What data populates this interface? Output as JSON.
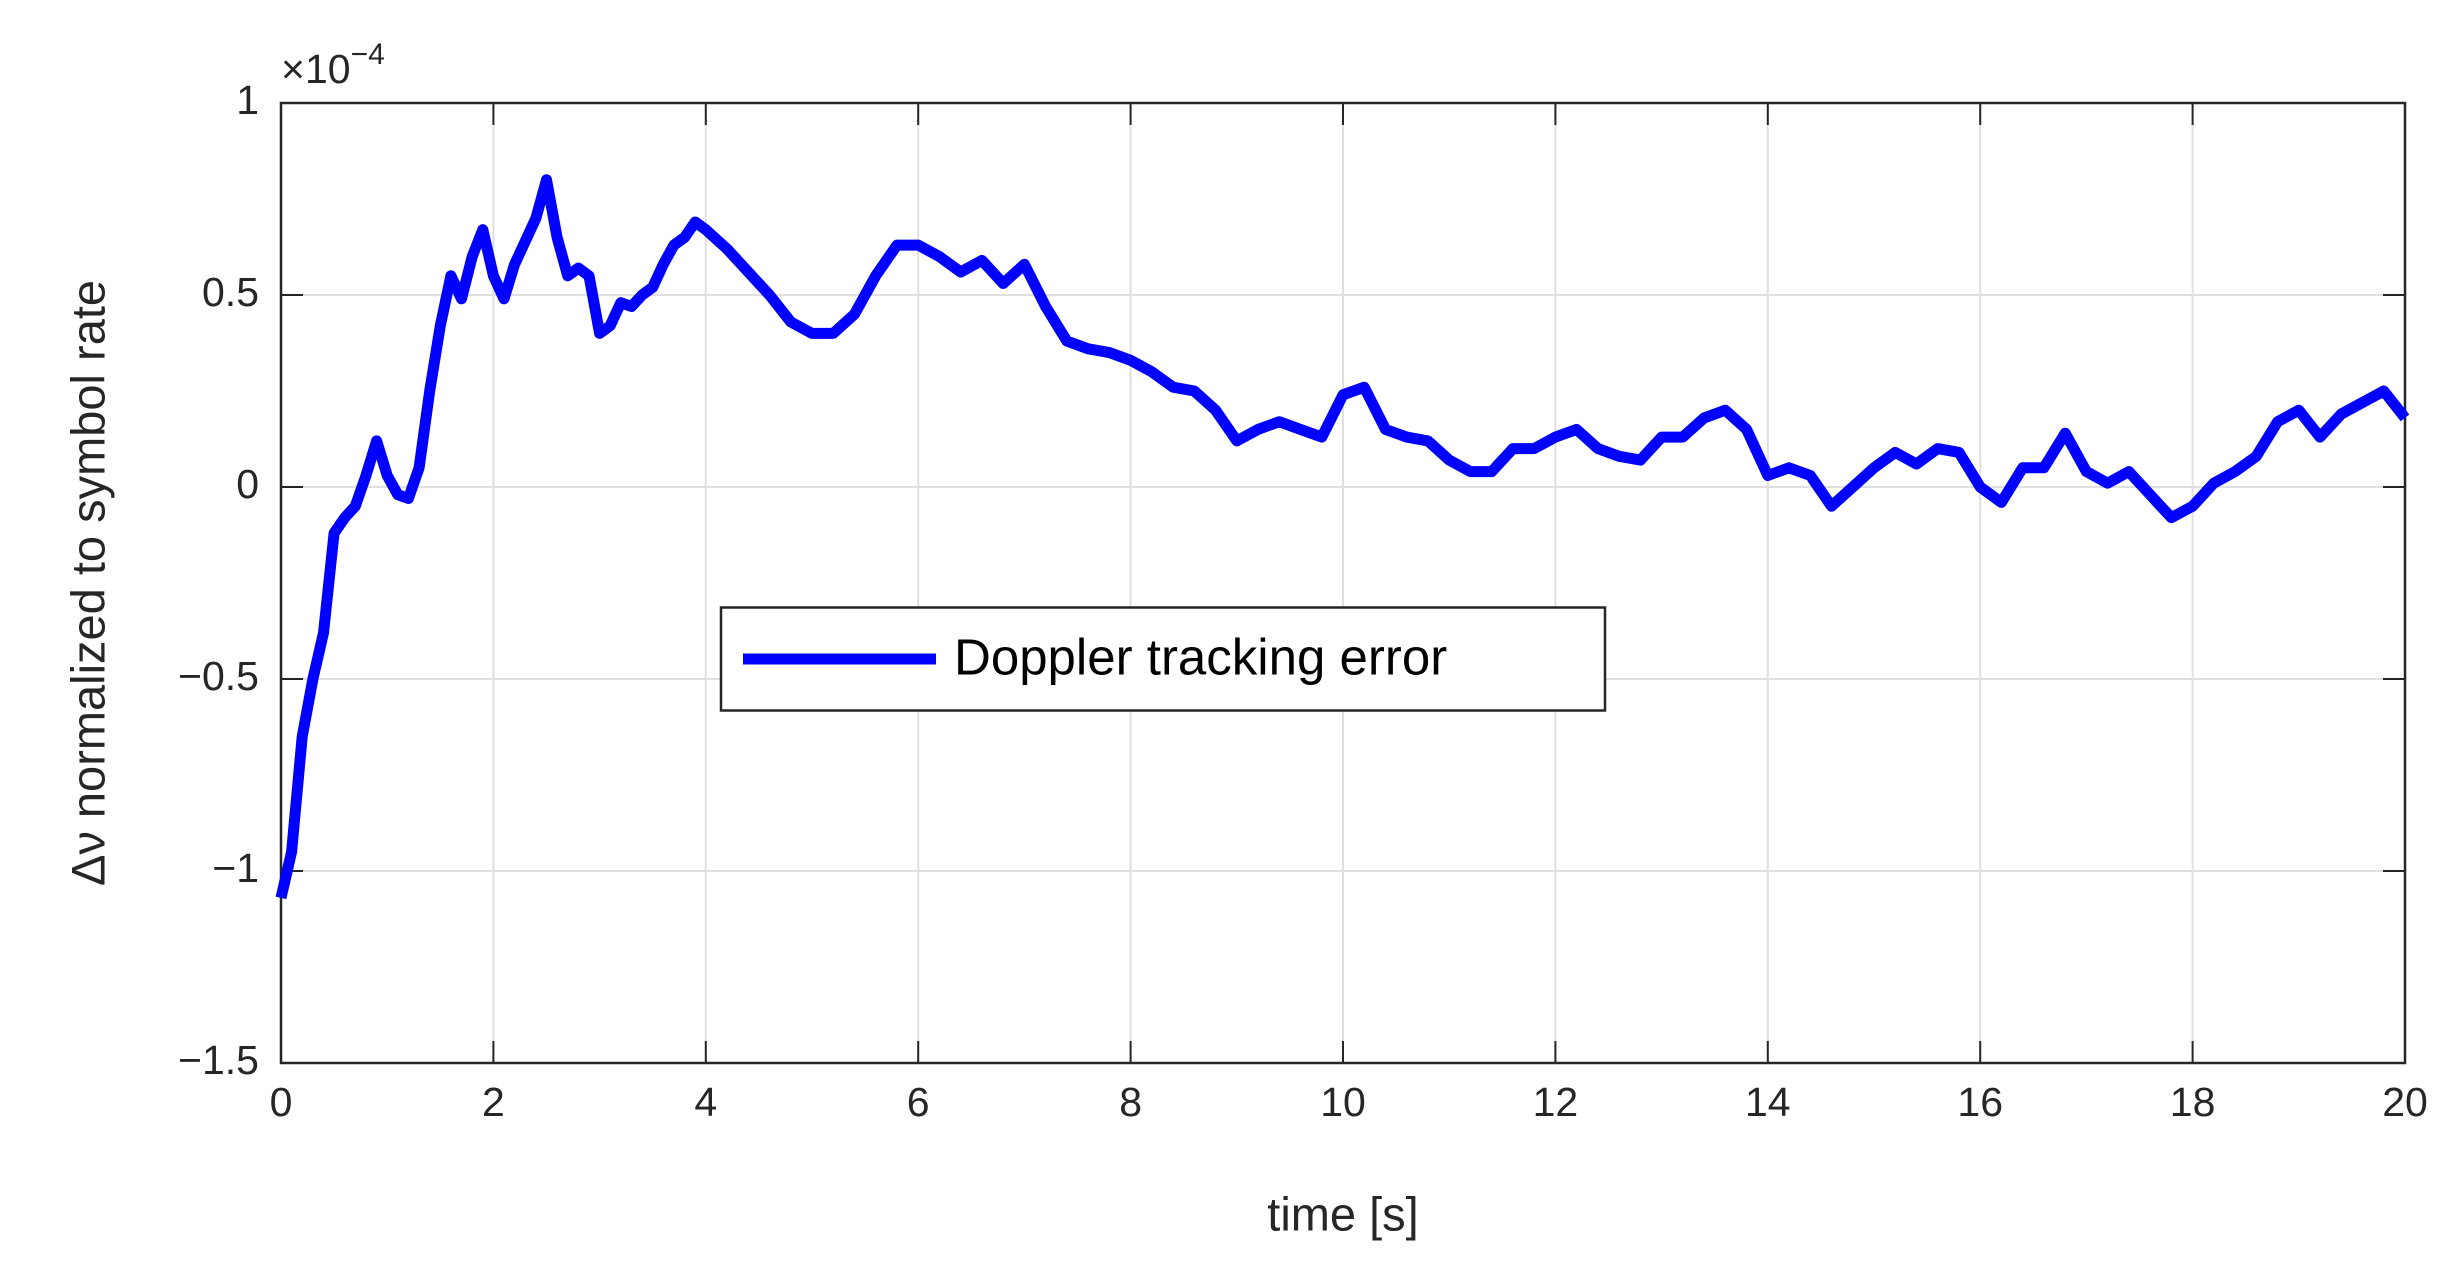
{
  "chart_data": {
    "type": "line",
    "x_label": "time [s]",
    "y_label": "Δν normalized to symbol rate",
    "y_multiplier": {
      "base": "×10",
      "exponent": "−4"
    },
    "x": [
      0,
      0.1,
      0.2,
      0.3,
      0.4,
      0.5,
      0.6,
      0.7,
      0.8,
      0.9,
      1.0,
      1.1,
      1.2,
      1.3,
      1.4,
      1.5,
      1.6,
      1.7,
      1.8,
      1.9,
      2.0,
      2.1,
      2.2,
      2.3,
      2.4,
      2.5,
      2.6,
      2.7,
      2.8,
      2.9,
      3.0,
      3.1,
      3.2,
      3.3,
      3.4,
      3.5,
      3.6,
      3.7,
      3.8,
      3.9,
      4.0,
      4.2,
      4.4,
      4.6,
      4.8,
      5.0,
      5.2,
      5.4,
      5.6,
      5.8,
      6.0,
      6.2,
      6.4,
      6.6,
      6.8,
      7.0,
      7.2,
      7.4,
      7.6,
      7.8,
      8.0,
      8.2,
      8.4,
      8.6,
      8.8,
      9.0,
      9.2,
      9.4,
      9.6,
      9.8,
      10.0,
      10.2,
      10.4,
      10.6,
      10.8,
      11.0,
      11.2,
      11.4,
      11.6,
      11.8,
      12.0,
      12.2,
      12.4,
      12.6,
      12.8,
      13.0,
      13.2,
      13.4,
      13.6,
      13.8,
      14.0,
      14.2,
      14.4,
      14.6,
      14.8,
      15.0,
      15.2,
      15.4,
      15.6,
      15.8,
      16.0,
      16.2,
      16.4,
      16.6,
      16.8,
      17.0,
      17.2,
      17.4,
      17.6,
      17.8,
      18.0,
      18.2,
      18.4,
      18.6,
      18.8,
      19.0,
      19.2,
      19.4,
      19.6,
      19.8,
      20.0
    ],
    "series": [
      {
        "name": "Doppler tracking error",
        "color": "#0000ff",
        "values": [
          -1.07,
          -0.95,
          -0.65,
          -0.5,
          -0.38,
          -0.12,
          -0.08,
          -0.05,
          0.03,
          0.12,
          0.03,
          -0.02,
          -0.03,
          0.05,
          0.25,
          0.42,
          0.55,
          0.49,
          0.6,
          0.67,
          0.55,
          0.49,
          0.58,
          0.64,
          0.7,
          0.8,
          0.65,
          0.55,
          0.57,
          0.55,
          0.4,
          0.42,
          0.48,
          0.47,
          0.5,
          0.52,
          0.58,
          0.63,
          0.65,
          0.69,
          0.67,
          0.62,
          0.56,
          0.5,
          0.43,
          0.4,
          0.4,
          0.45,
          0.55,
          0.63,
          0.63,
          0.6,
          0.56,
          0.59,
          0.53,
          0.58,
          0.47,
          0.38,
          0.36,
          0.35,
          0.33,
          0.3,
          0.26,
          0.25,
          0.2,
          0.12,
          0.15,
          0.17,
          0.15,
          0.13,
          0.24,
          0.26,
          0.15,
          0.13,
          0.12,
          0.07,
          0.04,
          0.04,
          0.1,
          0.1,
          0.13,
          0.15,
          0.1,
          0.08,
          0.07,
          0.13,
          0.13,
          0.18,
          0.2,
          0.15,
          0.03,
          0.05,
          0.03,
          -0.05,
          0.0,
          0.05,
          0.09,
          0.06,
          0.1,
          0.09,
          0.0,
          -0.04,
          0.05,
          0.05,
          0.14,
          0.04,
          0.01,
          0.04,
          -0.02,
          -0.08,
          -0.05,
          0.01,
          0.04,
          0.08,
          0.17,
          0.2,
          0.13,
          0.19,
          0.22,
          0.25,
          0.18
        ]
      }
    ],
    "xlim": [
      0,
      20
    ],
    "xticks": [
      0,
      2,
      4,
      6,
      8,
      10,
      12,
      14,
      16,
      18,
      20
    ],
    "ylim": [
      -1.5,
      1
    ],
    "yticks": [
      {
        "value": -1.5,
        "label": "−1.5"
      },
      {
        "value": -1,
        "label": "−1"
      },
      {
        "value": -0.5,
        "label": "−0.5"
      },
      0,
      0.5,
      1
    ],
    "grid": true,
    "legend_position": "center"
  }
}
